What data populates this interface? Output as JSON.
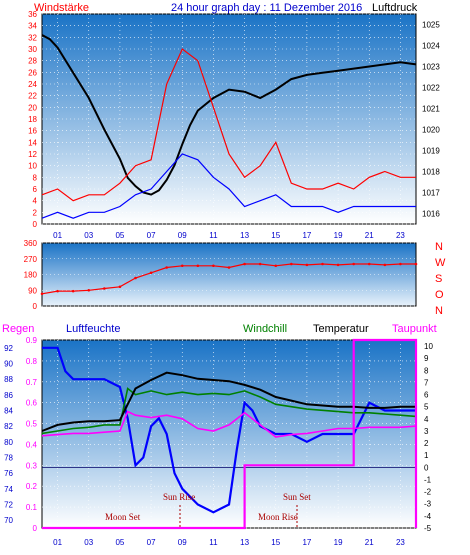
{
  "header": {
    "left_label": "Windstärke",
    "title": "24 hour graph day : 11 Dezember 2016",
    "right_label": "Luftdruck"
  },
  "compass": [
    "N",
    "W",
    "S",
    "O",
    "N"
  ],
  "panel3": {
    "labels": [
      "Regen",
      "Luftfeuchte",
      "Windchill",
      "Temperatur",
      "Taupunkt"
    ],
    "annotations": [
      "Sun Rise",
      "Sun Set",
      "Moon Set",
      "Moon Rise"
    ]
  },
  "colors": {
    "wind_speed": "#ff0000",
    "wind_gust_base": "#0000ff",
    "pressure": "#000000",
    "wind_direction": "#ff0000",
    "humidity": "#0000ff",
    "windchill": "#008000",
    "temperature": "#000000",
    "dewpoint": "#ff00ff",
    "rain": "#ff00ff",
    "panel_top": "#1a73c6",
    "panel_bottom": "#ffffff"
  },
  "chart_data": [
    {
      "type": "line",
      "name": "wind-and-pressure",
      "xlabel": "",
      "x_ticks": [
        "01",
        "03",
        "05",
        "07",
        "09",
        "11",
        "13",
        "15",
        "17",
        "19",
        "21",
        "23"
      ],
      "xlim": [
        0,
        24
      ],
      "y_left_ticks": [
        0,
        2,
        4,
        6,
        8,
        10,
        12,
        14,
        16,
        18,
        20,
        22,
        24,
        26,
        28,
        30,
        32,
        34,
        36
      ],
      "y_left_lim": [
        0,
        36
      ],
      "y_right_ticks": [
        1016,
        1017,
        1018,
        1019,
        1020,
        1021,
        1022,
        1023,
        1024,
        1025
      ],
      "y_right_lim": [
        1015.5,
        1025.5
      ],
      "series": [
        {
          "key": "pressure",
          "x": [
            0,
            0.5,
            1,
            2,
            3,
            4,
            5,
            5.5,
            6,
            6.5,
            7,
            7.5,
            8,
            8.5,
            9,
            9.5,
            10,
            11,
            12,
            13,
            14,
            15,
            16,
            17,
            18,
            19,
            20,
            21,
            22,
            23,
            24
          ],
          "y": [
            1024.5,
            1024.3,
            1023.9,
            1022.7,
            1021.5,
            1020.0,
            1018.6,
            1017.7,
            1017.3,
            1017.0,
            1016.9,
            1017.1,
            1017.6,
            1018.3,
            1019.3,
            1020.2,
            1020.9,
            1021.5,
            1021.9,
            1021.8,
            1021.5,
            1021.9,
            1022.4,
            1022.6,
            1022.7,
            1022.8,
            1022.9,
            1023.0,
            1023.1,
            1023.2,
            1023.1
          ]
        },
        {
          "key": "wind_speed",
          "x": [
            0,
            1,
            2,
            3,
            4,
            5,
            6,
            7,
            8,
            9,
            10,
            11,
            12,
            13,
            14,
            15,
            16,
            17,
            18,
            19,
            20,
            21,
            22,
            23,
            24
          ],
          "y": [
            5,
            6,
            4,
            5,
            5,
            7,
            10,
            11,
            24,
            30,
            28,
            20,
            12,
            8,
            10,
            14,
            7,
            6,
            6,
            7,
            6,
            8,
            9,
            8,
            8
          ]
        },
        {
          "key": "wind_gust_base",
          "x": [
            0,
            1,
            2,
            3,
            4,
            5,
            6,
            7,
            8,
            9,
            10,
            11,
            12,
            13,
            14,
            15,
            16,
            17,
            18,
            19,
            20,
            21,
            22,
            23,
            24
          ],
          "y": [
            1,
            2,
            1,
            2,
            2,
            3,
            5,
            6,
            9,
            12,
            11,
            8,
            6,
            3,
            4,
            5,
            3,
            3,
            3,
            2,
            3,
            3,
            3,
            3,
            3
          ]
        }
      ]
    },
    {
      "type": "scatter",
      "name": "wind-direction",
      "x_ticks": [],
      "y_ticks": [
        0,
        90,
        180,
        270,
        360
      ],
      "ylim": [
        0,
        360
      ],
      "series": [
        {
          "key": "wind_direction",
          "x": [
            0,
            1,
            2,
            3,
            4,
            5,
            6,
            7,
            8,
            9,
            10,
            11,
            12,
            13,
            14,
            15,
            16,
            17,
            18,
            19,
            20,
            21,
            22,
            23,
            24
          ],
          "y": [
            70,
            85,
            85,
            90,
            100,
            110,
            160,
            190,
            220,
            230,
            230,
            230,
            220,
            240,
            240,
            230,
            240,
            235,
            240,
            235,
            240,
            240,
            235,
            240,
            240
          ]
        }
      ]
    },
    {
      "type": "line",
      "name": "humidity-temperature-rain",
      "x_ticks": [
        "01",
        "03",
        "05",
        "07",
        "09",
        "11",
        "13",
        "15",
        "17",
        "19",
        "21",
        "23"
      ],
      "xlim": [
        0,
        24
      ],
      "y_humidity_ticks": [
        70,
        72,
        74,
        76,
        78,
        80,
        82,
        84,
        86,
        88,
        90,
        92
      ],
      "y_humidity_lim": [
        69,
        93
      ],
      "y_rain_ticks": [
        0,
        0.1,
        0.2,
        0.3,
        0.4,
        0.5,
        0.6,
        0.7,
        0.8,
        0.9
      ],
      "y_rain_lim": [
        0,
        0.9
      ],
      "y_temp_ticks": [
        -5,
        -4,
        -3,
        -2,
        -1,
        0,
        1,
        2,
        3,
        4,
        5,
        6,
        7,
        8,
        9,
        10
      ],
      "y_temp_lim": [
        -5,
        10.5
      ],
      "series": [
        {
          "key": "humidity",
          "axis": "humidity",
          "x": [
            0,
            1,
            1.5,
            2,
            3,
            4,
            5,
            5.5,
            6,
            6.5,
            7,
            7.5,
            8,
            8.5,
            9,
            10,
            11,
            12,
            12.5,
            13,
            13.5,
            14,
            15,
            16,
            17,
            18,
            19,
            20,
            21,
            22,
            23,
            24
          ],
          "y": [
            92,
            92,
            89,
            88,
            88,
            88,
            87,
            83,
            77,
            78,
            82,
            83,
            81,
            76,
            74,
            72,
            71,
            72,
            79,
            85,
            84,
            82,
            81,
            81,
            80,
            81,
            81,
            81,
            85,
            84,
            84,
            84
          ]
        },
        {
          "key": "windchill",
          "axis": "temp",
          "x": [
            0,
            1,
            2,
            3,
            4,
            5,
            5.5,
            6,
            7,
            8,
            9,
            10,
            11,
            12,
            13,
            14,
            15,
            16,
            17,
            18,
            19,
            20,
            21,
            22,
            23,
            24
          ],
          "y": [
            2.8,
            3.0,
            3.2,
            3.3,
            3.5,
            3.5,
            6.5,
            6.0,
            6.3,
            6.0,
            6.2,
            6.0,
            6.1,
            6.0,
            6.3,
            5.8,
            5.2,
            5.0,
            4.8,
            4.7,
            4.6,
            4.5,
            4.5,
            4.4,
            4.3,
            4.2
          ]
        },
        {
          "key": "temperature",
          "axis": "temp",
          "x": [
            0,
            1,
            2,
            3,
            4,
            5,
            6,
            7,
            8,
            9,
            10,
            11,
            12,
            13,
            14,
            15,
            16,
            17,
            18,
            19,
            20,
            21,
            22,
            23,
            24
          ],
          "y": [
            3.0,
            3.5,
            3.7,
            3.8,
            3.8,
            3.9,
            6.5,
            7.2,
            7.8,
            7.6,
            7.3,
            7.2,
            7.1,
            6.8,
            6.4,
            5.8,
            5.5,
            5.2,
            5.1,
            5.0,
            5.0,
            4.9,
            4.9,
            5.0,
            5.0
          ]
        },
        {
          "key": "dewpoint",
          "axis": "temp",
          "x": [
            0,
            1,
            2,
            3,
            4,
            5,
            5.5,
            6,
            7,
            8,
            9,
            10,
            11,
            12,
            13,
            14,
            15,
            16,
            17,
            18,
            19,
            20,
            21,
            22,
            23,
            24
          ],
          "y": [
            2.6,
            2.7,
            2.8,
            2.8,
            2.9,
            3.0,
            4.6,
            4.3,
            4.1,
            4.3,
            4.0,
            3.2,
            3.0,
            3.5,
            4.5,
            3.5,
            2.5,
            2.7,
            2.8,
            3.0,
            3.2,
            3.2,
            3.3,
            3.3,
            3.3,
            3.4
          ]
        },
        {
          "key": "rain",
          "axis": "rain",
          "x": [
            0,
            13,
            13,
            20,
            20,
            24,
            24
          ],
          "y": [
            0,
            0,
            0.3,
            0.3,
            0.9,
            0.9,
            0
          ]
        }
      ]
    }
  ]
}
